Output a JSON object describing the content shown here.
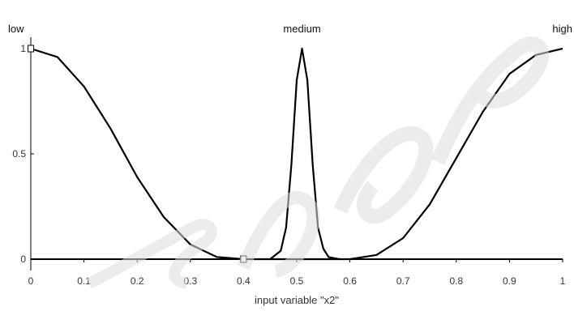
{
  "chart_data": {
    "type": "line",
    "title": "",
    "xlabel": "input variable \"x2\"",
    "ylabel": "",
    "xlim": [
      0,
      1
    ],
    "ylim": [
      0,
      1
    ],
    "x_ticks": [
      "0",
      "0.1",
      "0.2",
      "0.3",
      "0.4",
      "0.5",
      "0.6",
      "0.7",
      "0.8",
      "0.9",
      "1"
    ],
    "y_ticks": [
      "0",
      "0.5",
      "1"
    ],
    "grid": false,
    "legend": "none",
    "series": [
      {
        "name": "low",
        "x": [
          0,
          0.05,
          0.1,
          0.15,
          0.2,
          0.25,
          0.3,
          0.35,
          0.4,
          0.45,
          0.5
        ],
        "y": [
          1,
          0.96,
          0.82,
          0.62,
          0.39,
          0.2,
          0.07,
          0.01,
          0,
          0,
          0
        ]
      },
      {
        "name": "medium",
        "x": [
          0.45,
          0.47,
          0.48,
          0.49,
          0.5,
          0.51,
          0.52,
          0.53,
          0.54,
          0.55,
          0.56,
          0.58
        ],
        "y": [
          0,
          0.04,
          0.15,
          0.45,
          0.85,
          1,
          0.85,
          0.45,
          0.15,
          0.05,
          0.01,
          0
        ]
      },
      {
        "name": "high",
        "x": [
          0.5,
          0.6,
          0.65,
          0.7,
          0.75,
          0.8,
          0.85,
          0.9,
          0.95,
          1
        ],
        "y": [
          0,
          0,
          0.02,
          0.1,
          0.26,
          0.48,
          0.7,
          0.88,
          0.97,
          1
        ]
      }
    ],
    "markers": [
      {
        "x": 0,
        "y": 1
      },
      {
        "x": 0.4,
        "y": 0
      }
    ],
    "colors": {
      "line": "#000000",
      "axis": "#000000",
      "text": "#333333",
      "watermark": "#d4d4d4"
    }
  }
}
